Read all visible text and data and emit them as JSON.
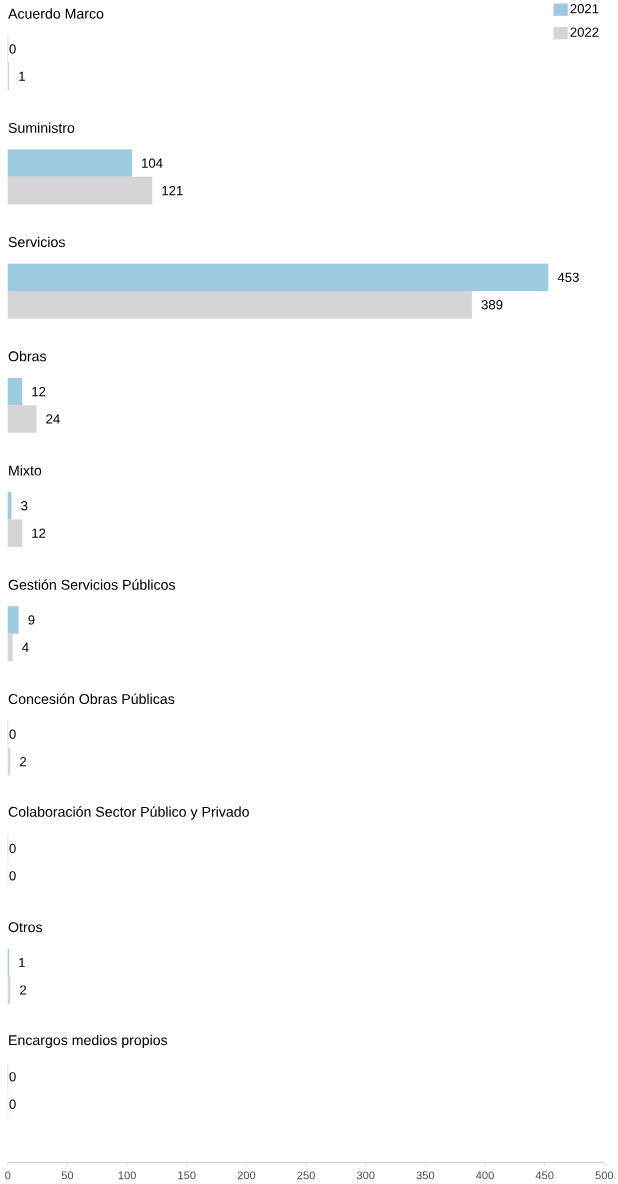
{
  "chart_data": {
    "type": "bar",
    "orientation": "horizontal",
    "categories": [
      "Acuerdo Marco",
      "Suministro",
      "Servicios",
      "Obras",
      "Mixto",
      "Gestión Servicios Públicos",
      "Concesión Obras Públicas",
      "Colaboración Sector Público y Privado",
      "Otros",
      "Encargos medios propios"
    ],
    "series": [
      {
        "name": "2021",
        "color": "#9ecae1",
        "values": [
          0,
          104,
          453,
          12,
          3,
          9,
          0,
          0,
          1,
          0
        ]
      },
      {
        "name": "2022",
        "color": "#d5d5d7",
        "values": [
          1,
          121,
          389,
          24,
          12,
          4,
          2,
          0,
          2,
          0
        ]
      }
    ],
    "xlim": [
      0,
      500
    ],
    "xticks": [
      0,
      50,
      100,
      150,
      200,
      250,
      300,
      350,
      400,
      450,
      500
    ],
    "data_labels": true,
    "legend": "top right",
    "grid": false
  }
}
